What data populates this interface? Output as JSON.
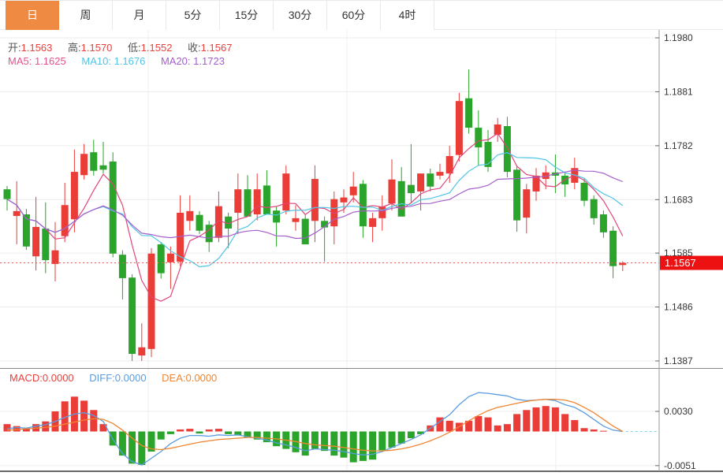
{
  "tabs": {
    "items": [
      {
        "label": "日",
        "active": true
      },
      {
        "label": "周",
        "active": false
      },
      {
        "label": "月",
        "active": false
      },
      {
        "label": "5分",
        "active": false
      },
      {
        "label": "15分",
        "active": false
      },
      {
        "label": "30分",
        "active": false
      },
      {
        "label": "60分",
        "active": false
      },
      {
        "label": "4时",
        "active": false
      }
    ]
  },
  "header": {
    "open_label": "开:",
    "open": "1.1563",
    "high_label": "高:",
    "high": "1.1570",
    "low_label": "低:",
    "low": "1.1552",
    "close_label": "收:",
    "close": "1.1567",
    "ma5_label": "MA5:",
    "ma5": "1.1625",
    "ma10_label": "MA10:",
    "ma10": "1.1676",
    "ma20_label": "MA20:",
    "ma20": "1.1723"
  },
  "macd_header": {
    "macd_label": "MACD:",
    "macd": "0.0000",
    "diff_label": "DIFF:",
    "diff": "0.0000",
    "dea_label": "DEA:",
    "dea": "0.0000"
  },
  "main_axis": {
    "ticks": [
      "1.1980",
      "1.1881",
      "1.1782",
      "1.1683",
      "1.1585",
      "1.1486",
      "1.1387"
    ],
    "last_price_badge": "1.1567"
  },
  "macd_axis": {
    "ticks": [
      "0.0030",
      "-0.0051"
    ]
  },
  "colors": {
    "up": "#ea3d38",
    "down": "#2aa42a",
    "tab_active": "#ef8a43",
    "ma5": "#e0457a",
    "ma10": "#4fc4e6",
    "ma20": "#a55ecb",
    "diff_line": "#5a9de0",
    "dea_line": "#f08632",
    "price_line": "#f25858",
    "badge": "#ee1111",
    "grid": "#ececec",
    "axis": "#9a9a9a",
    "tick_text": "#333333"
  },
  "chart_data": {
    "type": "candlestick",
    "convention": "red=up green=down (CN)",
    "ylim": [
      1.1387,
      1.198
    ],
    "price_line": 1.1567,
    "ma_periods": [
      5,
      10,
      20
    ],
    "candles": [
      [
        1.1702,
        1.1708,
        1.1663,
        1.1684
      ],
      [
        1.1653,
        1.1717,
        1.1601,
        1.1662
      ],
      [
        1.1656,
        1.1666,
        1.1591,
        1.1597
      ],
      [
        1.1579,
        1.1688,
        1.1553,
        1.1633
      ],
      [
        1.163,
        1.1678,
        1.1548,
        1.1572
      ],
      [
        1.1565,
        1.1642,
        1.1533,
        1.159
      ],
      [
        1.1616,
        1.1714,
        1.1605,
        1.1673
      ],
      [
        1.1647,
        1.1775,
        1.1623,
        1.1734
      ],
      [
        1.1728,
        1.1785,
        1.172,
        1.1767
      ],
      [
        1.177,
        1.1793,
        1.1727,
        1.1736
      ],
      [
        1.1746,
        1.1789,
        1.1731,
        1.1738
      ],
      [
        1.1753,
        1.177,
        1.1577,
        1.1584
      ],
      [
        1.1582,
        1.159,
        1.15,
        1.1539
      ],
      [
        1.154,
        1.1546,
        1.1387,
        1.14
      ],
      [
        1.1397,
        1.1456,
        1.1387,
        1.1412
      ],
      [
        1.1409,
        1.1594,
        1.1394,
        1.1584
      ],
      [
        1.1601,
        1.1605,
        1.1538,
        1.1548
      ],
      [
        1.1568,
        1.1597,
        1.1519,
        1.1584
      ],
      [
        1.1569,
        1.1691,
        1.1561,
        1.1659
      ],
      [
        1.1644,
        1.1691,
        1.1626,
        1.1662
      ],
      [
        1.1655,
        1.1662,
        1.162,
        1.1626
      ],
      [
        1.1637,
        1.1644,
        1.1587,
        1.1605
      ],
      [
        1.1613,
        1.1698,
        1.1605,
        1.1671
      ],
      [
        1.1652,
        1.1659,
        1.1594,
        1.163
      ],
      [
        1.1659,
        1.1731,
        1.162,
        1.1702
      ],
      [
        1.1702,
        1.1728,
        1.1652,
        1.1652
      ],
      [
        1.1656,
        1.1731,
        1.1645,
        1.1702
      ],
      [
        1.1709,
        1.1737,
        1.1656,
        1.1656
      ],
      [
        1.1663,
        1.167,
        1.1597,
        1.1641
      ],
      [
        1.1663,
        1.1746,
        1.1656,
        1.1731
      ],
      [
        1.1642,
        1.1673,
        1.1626,
        1.1649
      ],
      [
        1.1648,
        1.1655,
        1.1601,
        1.1601
      ],
      [
        1.1644,
        1.1746,
        1.1605,
        1.1721
      ],
      [
        1.1644,
        1.1652,
        1.1569,
        1.1632
      ],
      [
        1.1634,
        1.1698,
        1.1601,
        1.1684
      ],
      [
        1.1678,
        1.1702,
        1.1659,
        1.1687
      ],
      [
        1.1691,
        1.1734,
        1.1678,
        1.1707
      ],
      [
        1.1712,
        1.1719,
        1.1613,
        1.1634
      ],
      [
        1.1633,
        1.1659,
        1.1605,
        1.1649
      ],
      [
        1.1649,
        1.1691,
        1.1626,
        1.167
      ],
      [
        1.1676,
        1.1757,
        1.1663,
        1.172
      ],
      [
        1.1717,
        1.1743,
        1.1652,
        1.1652
      ],
      [
        1.171,
        1.1785,
        1.1678,
        1.1695
      ],
      [
        1.1698,
        1.1731,
        1.1663,
        1.1731
      ],
      [
        1.1731,
        1.174,
        1.1698,
        1.1707
      ],
      [
        1.1727,
        1.1749,
        1.172,
        1.1734
      ],
      [
        1.1731,
        1.1782,
        1.1714,
        1.1763
      ],
      [
        1.1765,
        1.1879,
        1.1753,
        1.1864
      ],
      [
        1.1869,
        1.1922,
        1.1804,
        1.1815
      ],
      [
        1.1815,
        1.1847,
        1.1746,
        1.1779
      ],
      [
        1.1789,
        1.1811,
        1.1734,
        1.1743
      ],
      [
        1.1802,
        1.1833,
        1.1789,
        1.1821
      ],
      [
        1.1818,
        1.1835,
        1.1724,
        1.1734
      ],
      [
        1.1738,
        1.1746,
        1.1624,
        1.1645
      ],
      [
        1.165,
        1.1712,
        1.1621,
        1.1702
      ],
      [
        1.1698,
        1.1741,
        1.1681,
        1.1727
      ],
      [
        1.1721,
        1.1746,
        1.1702,
        1.1733
      ],
      [
        1.1733,
        1.1766,
        1.1695,
        1.1727
      ],
      [
        1.1727,
        1.1734,
        1.1688,
        1.1711
      ],
      [
        1.1714,
        1.176,
        1.1702,
        1.1741
      ],
      [
        1.1714,
        1.1721,
        1.1671,
        1.1681
      ],
      [
        1.1684,
        1.1691,
        1.1637,
        1.1649
      ],
      [
        1.1656,
        1.1663,
        1.1613,
        1.1623
      ],
      [
        1.1626,
        1.1634,
        1.1539,
        1.1561
      ],
      [
        1.1563,
        1.157,
        1.1552,
        1.1567
      ]
    ],
    "macd": {
      "ylim": [
        -0.0051,
        0.003
      ],
      "histogram": [
        0.0011,
        0.0008,
        0.0004,
        0.0011,
        0.0015,
        0.003,
        0.0045,
        0.0052,
        0.0046,
        0.0032,
        0.0011,
        -0.0021,
        -0.0036,
        -0.0048,
        -0.005,
        -0.003,
        -0.0012,
        -0.0004,
        0.0003,
        0.0004,
        -0.0003,
        0.0003,
        0.0004,
        -0.0004,
        -0.0006,
        -0.0009,
        -0.0012,
        -0.0016,
        -0.0022,
        -0.0026,
        -0.0031,
        -0.0036,
        -0.0026,
        -0.0029,
        -0.0036,
        -0.0039,
        -0.0046,
        -0.0044,
        -0.0042,
        -0.0028,
        -0.0024,
        -0.0018,
        -0.001,
        -0.0004,
        0.0009,
        0.0021,
        0.0016,
        0.0013,
        0.0016,
        0.0023,
        0.0021,
        0.0009,
        0.0011,
        0.0026,
        0.0032,
        0.0036,
        0.0038,
        0.0036,
        0.0026,
        0.0017,
        0.0005,
        0.0003,
        0.0001,
        0.0,
        0.0
      ],
      "diff": [
        0.0004,
        0.0006,
        0.0005,
        0.0008,
        0.001,
        0.0015,
        0.0021,
        0.0026,
        0.0028,
        0.0024,
        0.0015,
        -0.0012,
        -0.0033,
        -0.0045,
        -0.005,
        -0.004,
        -0.003,
        -0.0018,
        -0.001,
        -0.0006,
        -0.0006,
        -0.0007,
        -0.0005,
        -0.0006,
        -0.0005,
        -0.0008,
        -0.001,
        -0.0013,
        -0.0017,
        -0.002,
        -0.0024,
        -0.0029,
        -0.0026,
        -0.0027,
        -0.0028,
        -0.003,
        -0.0033,
        -0.0035,
        -0.0034,
        -0.003,
        -0.0024,
        -0.0018,
        -0.0012,
        -0.0005,
        0.0005,
        0.0015,
        0.0025,
        0.004,
        0.0052,
        0.0058,
        0.0057,
        0.0055,
        0.0053,
        0.0048,
        0.0046,
        0.0047,
        0.0048,
        0.0046,
        0.004,
        0.0036,
        0.0028,
        0.0018,
        0.0008,
        0.0002,
        0.0
      ],
      "dea": [
        0.0002,
        0.0003,
        0.0004,
        0.0005,
        0.0006,
        0.0008,
        0.0011,
        0.0014,
        0.0017,
        0.0019,
        0.0018,
        0.0012,
        0.0002,
        -0.001,
        -0.0021,
        -0.0026,
        -0.0027,
        -0.0025,
        -0.0022,
        -0.0019,
        -0.0016,
        -0.0014,
        -0.0012,
        -0.0011,
        -0.001,
        -0.0009,
        -0.0009,
        -0.001,
        -0.0011,
        -0.0013,
        -0.0015,
        -0.0018,
        -0.002,
        -0.0021,
        -0.0022,
        -0.0024,
        -0.0026,
        -0.0028,
        -0.0029,
        -0.0029,
        -0.0028,
        -0.0026,
        -0.0023,
        -0.0019,
        -0.0014,
        -0.0008,
        -0.0001,
        0.0007,
        0.0016,
        0.0024,
        0.0031,
        0.0036,
        0.0039,
        0.0042,
        0.0045,
        0.0047,
        0.0048,
        0.0048,
        0.0047,
        0.0043,
        0.0036,
        0.0028,
        0.0018,
        0.0008,
        0.0
      ]
    }
  }
}
